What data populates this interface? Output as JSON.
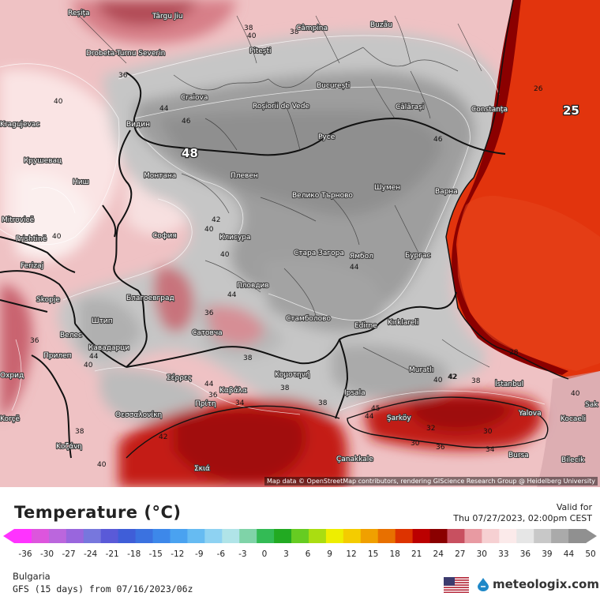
{
  "map": {
    "attribution": "Map data © OpenStreetMap contributors, rendering GIScience Research Group @ Heidelberg University",
    "cities": [
      "Reșița",
      "Târgu Jiu",
      "Câmpina",
      "Buzău",
      "Drobeta-Turnu Severin",
      "Pitești",
      "Craiova",
      "București",
      "Roșiorii de Vede",
      "Călărași",
      "Constanța",
      "Kragujevac",
      "Видин",
      "Русе",
      "Крушевац",
      "Монтана",
      "Плевен",
      "Ниш",
      "Велико Търново",
      "Шумен",
      "Варна",
      "Mitrovicë",
      "София",
      "Prishtinë",
      "Клисура",
      "Стара Загора",
      "Ямбол",
      "Бургас",
      "Ferizaj",
      "Пловдив",
      "Skopje",
      "Благоевград",
      "Штип",
      "Стамболово",
      "Edirne",
      "Kırklareli",
      "Велес",
      "Сатовча",
      "Кавадарци",
      "Прилеп",
      "Κομοτηνή",
      "Muratlı",
      "İstanbul",
      "Охрид",
      "Σέρρες",
      "Καβάλα",
      "Ipsala",
      "Yalova",
      "Kocaeli",
      "Korçë",
      "Θεσσαλονίκη",
      "Πρίτη",
      "Şarköy",
      "Sak",
      "Bursa",
      "Κοζάνη",
      "Çanakkale",
      "Bilecik",
      "Σκιά"
    ],
    "isotherm_labels": [
      "40",
      "38",
      "38",
      "36",
      "40",
      "44",
      "46",
      "48",
      "46",
      "25",
      "26",
      "42",
      "40",
      "40",
      "44",
      "36",
      "36",
      "40",
      "44",
      "38",
      "36",
      "38",
      "44",
      "42",
      "40",
      "42",
      "44",
      "45",
      "38",
      "34",
      "40",
      "32",
      "34",
      "30",
      "28",
      "38",
      "42",
      "36",
      "30",
      "38",
      "40",
      "40",
      "44"
    ]
  },
  "legend": {
    "title": "Temperature (°C)",
    "valid_label": "Valid for",
    "valid_time": "Thu 07/27/2023, 02:00pm CEST",
    "scale_ticks": [
      "-36",
      "-30",
      "-27",
      "-24",
      "-21",
      "-18",
      "-15",
      "-12",
      "-9",
      "-6",
      "-3",
      "0",
      "3",
      "6",
      "9",
      "12",
      "15",
      "18",
      "21",
      "24",
      "27",
      "30",
      "33",
      "36",
      "39",
      "44",
      "50"
    ],
    "scale_colors": [
      "#ff33ff",
      "#dd55dd",
      "#bb66dd",
      "#9966dd",
      "#7777dd",
      "#5a5ad8",
      "#3f5ed8",
      "#3b72e0",
      "#3d88ea",
      "#4aa2f0",
      "#66bbf2",
      "#8ed2f2",
      "#b0e4e8",
      "#7fd3a8",
      "#33bb55",
      "#22aa22",
      "#66cc22",
      "#aadd11",
      "#eeee00",
      "#f4cc00",
      "#f0a000",
      "#e87000",
      "#dd3300",
      "#bb0000",
      "#8a0000",
      "#c85060",
      "#e89aa2",
      "#f6d0d2",
      "#fbeaea",
      "#e6e6e6",
      "#c8c8c8",
      "#aaaaaa",
      "#909090"
    ],
    "region": "Bulgaria",
    "model": "GFS (15 days) from 07/16/2023/06z",
    "logo": "meteologix.com"
  }
}
